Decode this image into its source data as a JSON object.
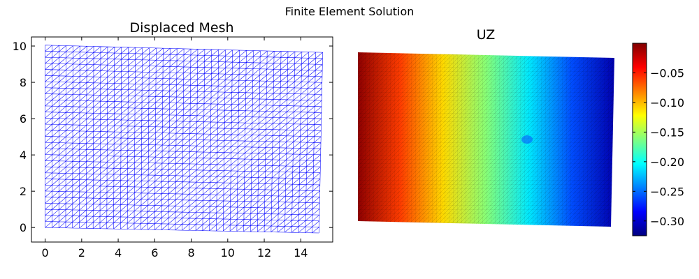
{
  "figure": {
    "suptitle": "Finite Element Solution"
  },
  "chart_data": [
    {
      "type": "mesh",
      "title": "Displaced Mesh",
      "xlabel": "",
      "ylabel": "",
      "xlim": [
        -0.75,
        15.75
      ],
      "ylim": [
        -0.8,
        10.5
      ],
      "xticks": [
        0,
        2,
        4,
        6,
        8,
        10,
        12,
        14
      ],
      "yticks": [
        0,
        2,
        4,
        6,
        8,
        10
      ],
      "mesh_color": "#0000ff",
      "grid": false,
      "mesh_nodes_x": 40,
      "mesh_nodes_y": 30,
      "corners": {
        "bottom_left": [
          0.0,
          0.0
        ],
        "bottom_right": [
          15.0,
          -0.3
        ],
        "top_right": [
          15.2,
          9.65
        ],
        "top_left": [
          0.0,
          10.05
        ]
      }
    },
    {
      "type": "heatmap",
      "title": "UZ",
      "field": "UZ",
      "colormap": "jet",
      "value_range": [
        -0.325,
        0.0
      ],
      "colorbar_ticks": [
        -0.05,
        -0.1,
        -0.15,
        -0.2,
        -0.25,
        -0.3
      ],
      "colorbar_tick_labels": [
        "−0.05",
        "−0.10",
        "−0.15",
        "−0.20",
        "−0.25",
        "−0.30"
      ],
      "axes_visible": false,
      "gradient_direction": "left-to-right",
      "values_left_to_right": [
        -0.005,
        -0.06,
        -0.11,
        -0.16,
        -0.21,
        -0.26,
        -0.31
      ]
    }
  ]
}
